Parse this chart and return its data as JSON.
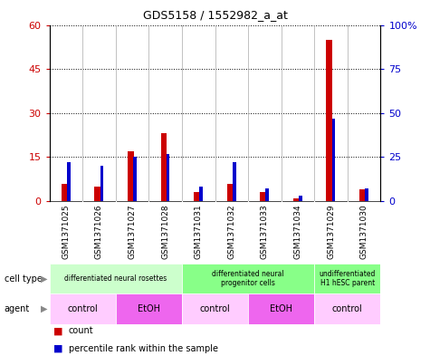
{
  "title": "GDS5158 / 1552982_a_at",
  "samples": [
    "GSM1371025",
    "GSM1371026",
    "GSM1371027",
    "GSM1371028",
    "GSM1371031",
    "GSM1371032",
    "GSM1371033",
    "GSM1371034",
    "GSM1371029",
    "GSM1371030"
  ],
  "counts": [
    6,
    5,
    17,
    23,
    3,
    6,
    3,
    1,
    55,
    4
  ],
  "percentiles": [
    22,
    20,
    25,
    27,
    8,
    22,
    7,
    3,
    47,
    7
  ],
  "ylim_left": [
    0,
    60
  ],
  "ylim_right": [
    0,
    100
  ],
  "yticks_left": [
    0,
    15,
    30,
    45,
    60
  ],
  "yticks_right": [
    0,
    25,
    50,
    75,
    100
  ],
  "cell_type_groups": [
    {
      "label": "differentiated neural rosettes",
      "start": 0,
      "end": 4,
      "color": "#ccffcc"
    },
    {
      "label": "differentiated neural\nprogenitor cells",
      "start": 4,
      "end": 8,
      "color": "#88ff88"
    },
    {
      "label": "undifferentiated\nH1 hESC parent",
      "start": 8,
      "end": 10,
      "color": "#88ff88"
    }
  ],
  "agent_groups": [
    {
      "label": "control",
      "start": 0,
      "end": 2,
      "color": "#ffccff"
    },
    {
      "label": "EtOH",
      "start": 2,
      "end": 4,
      "color": "#ee66ee"
    },
    {
      "label": "control",
      "start": 4,
      "end": 6,
      "color": "#ffccff"
    },
    {
      "label": "EtOH",
      "start": 6,
      "end": 8,
      "color": "#ee66ee"
    },
    {
      "label": "control",
      "start": 8,
      "end": 10,
      "color": "#ffccff"
    }
  ],
  "count_color": "#cc0000",
  "percentile_color": "#0000cc",
  "legend_count_label": "count",
  "legend_percentile_label": "percentile rank within the sample",
  "bg_color": "#ffffff",
  "sample_bg_color": "#c8c8c8"
}
